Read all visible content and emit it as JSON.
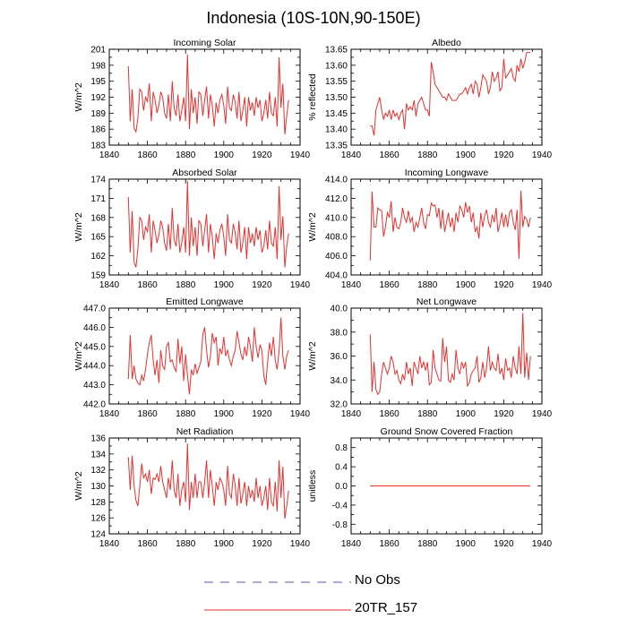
{
  "title": "Indonesia (10S-10N,90-150E)",
  "legend": [
    {
      "label": "No Obs",
      "style": "dashed",
      "color": "#5a5aa8"
    },
    {
      "label": "20TR_157",
      "style": "solid",
      "color": "#e8312f"
    }
  ],
  "chart_data": [
    {
      "type": "line",
      "title": "Incoming Solar",
      "ylabel": "W/m^2",
      "xlim": [
        1840,
        1940
      ],
      "xticks": [
        1840,
        1860,
        1880,
        1900,
        1920,
        1940
      ],
      "ylim": [
        183,
        201
      ],
      "yticks": [
        183,
        186,
        189,
        192,
        195,
        198,
        201
      ],
      "yticklabels": [
        "183",
        "186",
        "189",
        "192",
        "195",
        "198",
        "201"
      ],
      "series": [
        {
          "name": "20TR_157",
          "x_start": 1850,
          "x_step": 1,
          "values": [
            197.8,
            187.5,
            193.5,
            186.2,
            185.5,
            188,
            193.5,
            193,
            189.5,
            192,
            191.2,
            194.6,
            187.5,
            193,
            191.5,
            189,
            190.5,
            193,
            192,
            189,
            188,
            192.5,
            187.5,
            195,
            190,
            188.5,
            192.5,
            187.5,
            189.5,
            192,
            187.5,
            200,
            186,
            193.5,
            189,
            192,
            187,
            193,
            192.5,
            188.5,
            191.5,
            194,
            188,
            192.5,
            190.5,
            186.5,
            191,
            189,
            191.5,
            192.5,
            190.5,
            187,
            194,
            190,
            189.5,
            192.5,
            191,
            188,
            193,
            187.5,
            189.5,
            192,
            186.5,
            192,
            189.5,
            191,
            188.5,
            192,
            190,
            191.5,
            187.5,
            189,
            191.5,
            188,
            193,
            189,
            188.5,
            192,
            186.5,
            199.5,
            190,
            194.5,
            185,
            188.5,
            191.5
          ]
        }
      ]
    },
    {
      "type": "line",
      "title": "Albedo",
      "ylabel": "% reflected",
      "xlim": [
        1840,
        1940
      ],
      "xticks": [
        1840,
        1860,
        1880,
        1900,
        1920,
        1940
      ],
      "ylim": [
        13.35,
        13.65
      ],
      "yticks": [
        13.35,
        13.4,
        13.45,
        13.5,
        13.55,
        13.6,
        13.65
      ],
      "yticklabels": [
        "13.35",
        "13.40",
        "13.45",
        "13.50",
        "13.55",
        "13.60",
        "13.65"
      ],
      "series": [
        {
          "name": "20TR_157",
          "x_start": 1850,
          "x_step": 1,
          "values": [
            13.41,
            13.41,
            13.38,
            13.46,
            13.48,
            13.5,
            13.46,
            13.43,
            13.45,
            13.44,
            13.46,
            13.43,
            13.46,
            13.44,
            13.45,
            13.43,
            13.45,
            13.46,
            13.4,
            13.48,
            13.46,
            13.47,
            13.46,
            13.49,
            13.44,
            13.48,
            13.49,
            13.5,
            13.48,
            13.46,
            13.46,
            13.44,
            13.61,
            13.58,
            13.54,
            13.53,
            13.52,
            13.51,
            13.5,
            13.5,
            13.49,
            13.51,
            13.5,
            13.49,
            13.49,
            13.49,
            13.5,
            13.51,
            13.51,
            13.52,
            13.53,
            13.51,
            13.53,
            13.54,
            13.51,
            13.55,
            13.54,
            13.5,
            13.53,
            13.57,
            13.56,
            13.55,
            13.51,
            13.53,
            13.58,
            13.55,
            13.56,
            13.58,
            13.52,
            13.53,
            13.62,
            13.56,
            13.57,
            13.58,
            13.59,
            13.56,
            13.55,
            13.6,
            13.58,
            13.62,
            13.59,
            13.61,
            13.64,
            13.64,
            13.64
          ]
        }
      ]
    },
    {
      "type": "line",
      "title": "Absorbed Solar",
      "ylabel": "W/m^2",
      "xlim": [
        1840,
        1940
      ],
      "xticks": [
        1840,
        1860,
        1880,
        1900,
        1920,
        1940
      ],
      "ylim": [
        159,
        174
      ],
      "yticks": [
        159,
        162,
        165,
        168,
        171,
        174
      ],
      "yticklabels": [
        "159",
        "162",
        "165",
        "168",
        "171",
        "174"
      ],
      "series": [
        {
          "name": "20TR_157",
          "x_start": 1850,
          "x_step": 1,
          "values": [
            171.2,
            162.5,
            169,
            161,
            160.2,
            163,
            168,
            167.5,
            164.5,
            166.5,
            165.8,
            168.5,
            162.5,
            167.5,
            166,
            164,
            165.3,
            167.5,
            166.5,
            164,
            162.8,
            167,
            163,
            169.5,
            164.5,
            163.5,
            167,
            162.5,
            164,
            166.5,
            162.5,
            173.7,
            162,
            168,
            163.5,
            166.5,
            162,
            167.5,
            167,
            163.5,
            166,
            168.5,
            162.5,
            167,
            165,
            161.5,
            165.5,
            164,
            166,
            167,
            165,
            162,
            168.5,
            164.5,
            164,
            167,
            165.5,
            163,
            167.5,
            162.5,
            164,
            166.5,
            161.5,
            166.5,
            164,
            165.5,
            163.5,
            166.5,
            164.5,
            166,
            162.5,
            163.5,
            166,
            163,
            167.5,
            164,
            163.5,
            166.5,
            161.5,
            172.9,
            164.5,
            168.2,
            160.2,
            163.5,
            165.5
          ]
        }
      ]
    },
    {
      "type": "line",
      "title": "Incoming Longwave",
      "ylabel": "W/m^2",
      "xlim": [
        1840,
        1940
      ],
      "xticks": [
        1840,
        1860,
        1880,
        1900,
        1920,
        1940
      ],
      "ylim": [
        404,
        414
      ],
      "yticks": [
        404,
        406,
        408,
        410,
        412,
        414
      ],
      "yticklabels": [
        "404.0",
        "406.0",
        "408.0",
        "410.0",
        "412.0",
        "414.0"
      ],
      "series": [
        {
          "name": "20TR_157",
          "x_start": 1850,
          "x_step": 1,
          "values": [
            405.5,
            412.7,
            409,
            409,
            411,
            410.8,
            410.7,
            408,
            409,
            410.5,
            410,
            411.7,
            408.5,
            410,
            409,
            408.8,
            409.5,
            411,
            410,
            409.5,
            410.7,
            409.5,
            410,
            408.5,
            409.5,
            409,
            410,
            411,
            409.5,
            408.8,
            410.3,
            410.2,
            411.5,
            411.2,
            411.3,
            410,
            411,
            408.8,
            410.8,
            408.5,
            409.5,
            410.5,
            409,
            410,
            408.5,
            410.5,
            409.5,
            411.2,
            410.8,
            410,
            411.6,
            410.5,
            411.2,
            409.5,
            410.5,
            408.5,
            409,
            407.8,
            410.5,
            409,
            410.2,
            410.8,
            409.5,
            409,
            410.3,
            409.5,
            411,
            408.5,
            409.3,
            410.5,
            409,
            410.3,
            409,
            410.5,
            410.8,
            409.5,
            408.7,
            410.8,
            405.7,
            412.8,
            409,
            410.1,
            409.8,
            409,
            410
          ]
        }
      ]
    },
    {
      "type": "line",
      "title": "Emitted Longwave",
      "ylabel": "W/m^2",
      "xlim": [
        1840,
        1940
      ],
      "xticks": [
        1840,
        1860,
        1880,
        1900,
        1920,
        1940
      ],
      "ylim": [
        442,
        447
      ],
      "yticks": [
        442,
        443,
        444,
        445,
        446,
        447
      ],
      "yticklabels": [
        "442.0",
        "443.0",
        "444.0",
        "445.0",
        "446.0",
        "447.0"
      ],
      "series": [
        {
          "name": "20TR_157",
          "x_start": 1850,
          "x_step": 1,
          "values": [
            443.3,
            445.6,
            443.3,
            444,
            443.3,
            443.1,
            443,
            443.5,
            443.2,
            443.8,
            444.6,
            445.2,
            445.6,
            444.3,
            443.5,
            444.3,
            443.1,
            444.8,
            444,
            443.8,
            445,
            445.2,
            444.2,
            444.3,
            443.9,
            443.7,
            445.4,
            444.1,
            445,
            443.2,
            444.6,
            443.5,
            442.5,
            443.8,
            443.5,
            444.1,
            443.6,
            443.9,
            444.2,
            445.6,
            446,
            444.8,
            443.9,
            444.5,
            445.7,
            445.2,
            445.5,
            444,
            444.9,
            444.6,
            445.5,
            444.5,
            444.8,
            444.3,
            444,
            444.5,
            444.8,
            445.8,
            445.2,
            444.6,
            444.3,
            445,
            444.5,
            445.5,
            445,
            444.2,
            446,
            445,
            444.4,
            445.1,
            444.8,
            443.5,
            443,
            444.2,
            445.2,
            444.5,
            445.5,
            444.3,
            443.8,
            444.8,
            446.5,
            444.5,
            443.8,
            444.5,
            444.8
          ]
        }
      ]
    },
    {
      "type": "line",
      "title": "Net Longwave",
      "ylabel": "W/m^2",
      "xlim": [
        1840,
        1940
      ],
      "xticks": [
        1840,
        1860,
        1880,
        1900,
        1920,
        1940
      ],
      "ylim": [
        32,
        40
      ],
      "yticks": [
        32,
        34,
        36,
        38,
        40
      ],
      "yticklabels": [
        "32.0",
        "34.0",
        "36.0",
        "38.0",
        "40.0"
      ],
      "series": [
        {
          "name": "20TR_157",
          "x_start": 1850,
          "x_step": 1,
          "values": [
            37.8,
            33,
            35.5,
            33.2,
            32.8,
            33,
            34.5,
            35.5,
            35,
            34.5,
            35,
            36,
            35.5,
            34.5,
            34.8,
            34,
            33.7,
            34.5,
            34,
            35.5,
            34.5,
            35,
            33.5,
            35.5,
            35,
            34.5,
            36,
            35,
            35.5,
            34.8,
            35.5,
            33.6,
            33.8,
            36.5,
            35,
            34.5,
            34,
            33.9,
            37.5,
            35.5,
            36.8,
            34,
            33.8,
            34.5,
            34,
            36.5,
            35,
            34.5,
            35.5,
            35,
            35.5,
            33.5,
            33.8,
            34.5,
            34.8,
            35,
            36,
            33.8,
            34.2,
            35.5,
            34.2,
            35,
            36.8,
            34.8,
            35.5,
            35,
            34.8,
            36.2,
            34.5,
            35,
            34,
            35.8,
            34.8,
            35,
            34.2,
            36,
            35,
            34.5,
            36.8,
            34.5,
            39.6,
            34.2,
            36.3,
            34,
            36
          ]
        }
      ]
    },
    {
      "type": "line",
      "title": "Net Radiation",
      "ylabel": "W/m^2",
      "xlim": [
        1840,
        1940
      ],
      "xticks": [
        1840,
        1860,
        1880,
        1900,
        1920,
        1940
      ],
      "ylim": [
        124,
        136
      ],
      "yticks": [
        124,
        126,
        128,
        130,
        132,
        134,
        136
      ],
      "yticklabels": [
        "124",
        "126",
        "128",
        "130",
        "132",
        "134",
        "136"
      ],
      "series": [
        {
          "name": "20TR_157",
          "x_start": 1850,
          "x_step": 1,
          "values": [
            133.6,
            129.5,
            133.8,
            130,
            128.2,
            127.5,
            130,
            132.8,
            131,
            131.5,
            130.5,
            132,
            129,
            131,
            130.8,
            131.5,
            130.5,
            132.5,
            130.5,
            129.5,
            128.5,
            131,
            129.5,
            133.2,
            129.5,
            128.5,
            131.5,
            127.5,
            129.5,
            130.5,
            128,
            135.3,
            127,
            130.5,
            128.5,
            131.5,
            128.5,
            130.5,
            130.5,
            128.5,
            130.5,
            133.2,
            128.5,
            132,
            130,
            127.5,
            130.5,
            129.5,
            131,
            130.5,
            129.5,
            127.5,
            132.5,
            129,
            128.5,
            131.5,
            130,
            127.5,
            131,
            127.8,
            129,
            130.5,
            127.5,
            130,
            128.5,
            129.5,
            128,
            131,
            128.5,
            130,
            127.5,
            128.5,
            130,
            127,
            131,
            128,
            127.5,
            130.5,
            126.8,
            133.2,
            128.5,
            132.4,
            125.9,
            127.5,
            129.4
          ]
        }
      ]
    },
    {
      "type": "line",
      "title": "Ground Snow Covered Fraction",
      "ylabel": "unitless",
      "xlim": [
        1840,
        1940
      ],
      "xticks": [
        1840,
        1860,
        1880,
        1900,
        1920,
        1940
      ],
      "ylim": [
        -1,
        1
      ],
      "yticks": [
        -0.8,
        -0.4,
        0,
        0.4,
        0.8
      ],
      "yticklabels": [
        "-0.8",
        "-0.4",
        "0.0",
        "0.4",
        "0.8"
      ],
      "series": [
        {
          "name": "20TR_157",
          "x_start": 1850,
          "x_step": 1,
          "constant": 0,
          "count": 85
        }
      ]
    }
  ]
}
